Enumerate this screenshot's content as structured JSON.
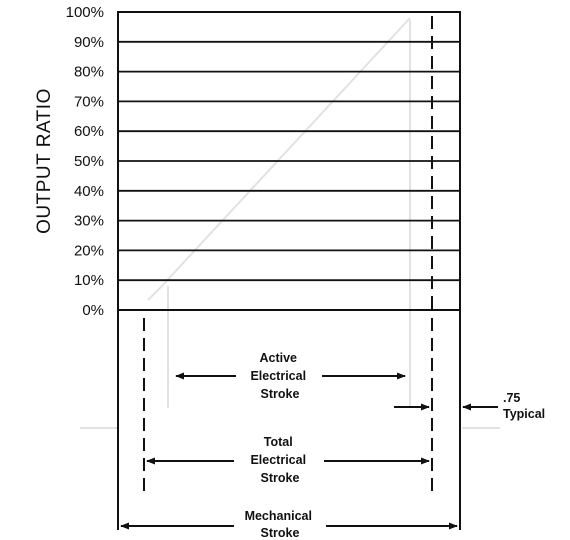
{
  "y_axis": {
    "label": "OUTPUT RATIO",
    "ticks": [
      "100%",
      "90%",
      "80%",
      "70%",
      "60%",
      "50%",
      "40%",
      "30%",
      "20%",
      "10%",
      "0%"
    ]
  },
  "annotations": {
    "active_stroke": [
      "Active",
      "Electrical",
      "Stroke"
    ],
    "total_stroke": [
      "Total",
      "Electrical",
      "Stroke"
    ],
    "mechanical_stroke": [
      "Mechanical",
      "Stroke"
    ],
    "typical": [
      ".75",
      "Typical"
    ]
  }
}
